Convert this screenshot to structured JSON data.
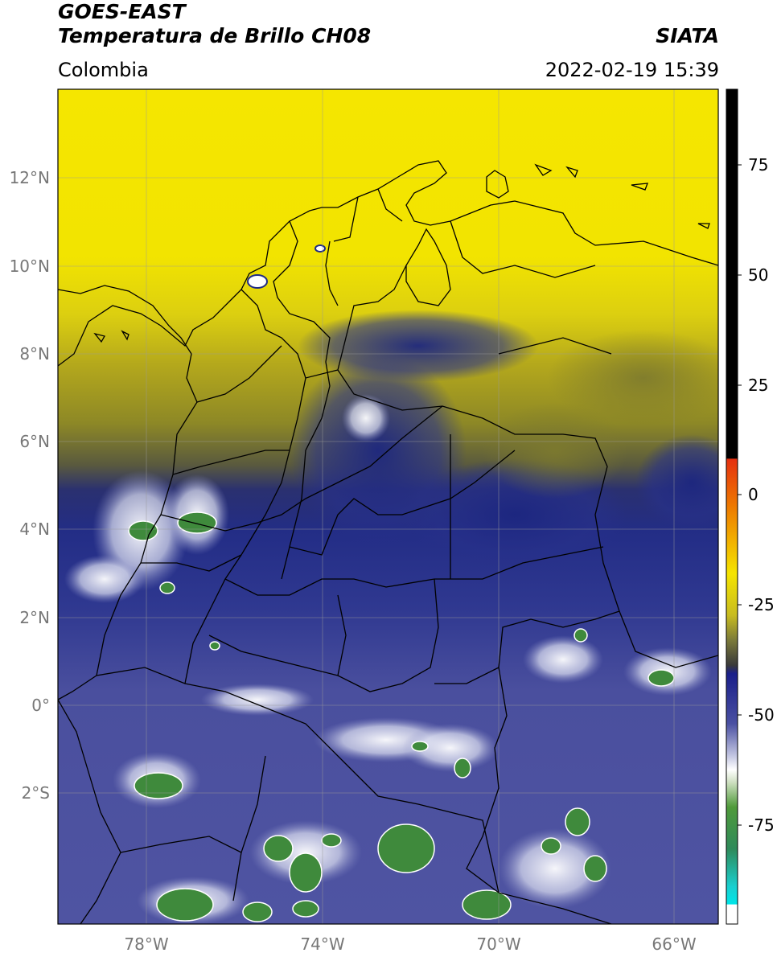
{
  "header": {
    "satellite": "GOES-EAST",
    "product": "Temperatura de Brillo CH08",
    "region": "Colombia",
    "source": "SIATA",
    "datetime": "2022-02-19 15:39"
  },
  "axes": {
    "lat_labels": [
      "12°N",
      "10°N",
      "8°N",
      "6°N",
      "4°N",
      "2°N",
      "0°",
      "2°S"
    ],
    "lon_labels": [
      "78°W",
      "74°W",
      "70°W",
      "66°W"
    ]
  },
  "colorbar": {
    "ticks": [
      "75",
      "50",
      "25",
      "0",
      "-25",
      "-50",
      "-75"
    ]
  },
  "colors": {
    "yellow": "#f2e600",
    "olive": "#8a8526",
    "navy": "#1f2a86",
    "slate": "#4a4f9e",
    "cloud_white": "#e8eaf4",
    "cloud_green": "#3f8a3c",
    "border": "#000000"
  }
}
